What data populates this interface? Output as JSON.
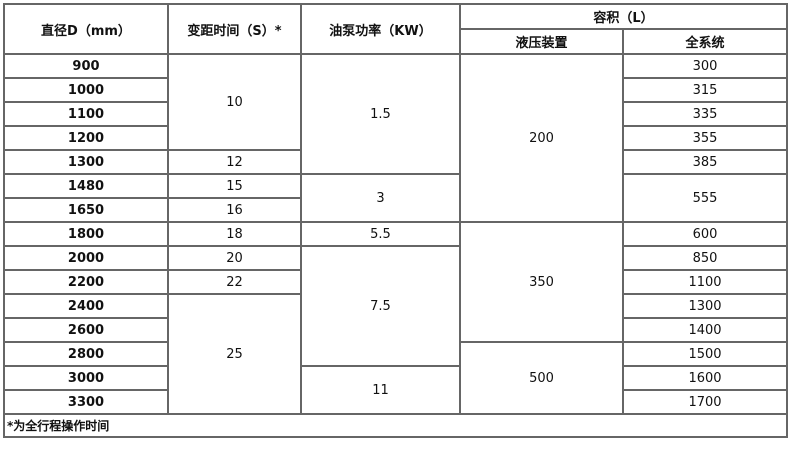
{
  "headers": {
    "diameter": "直径D（mm）",
    "time": "变距时间（S）*",
    "power": "油泵功率（KW）",
    "volume": "容积（L）",
    "hydraulic": "液压装置",
    "system": "全系统"
  },
  "diameters": [
    "900",
    "1000",
    "1100",
    "1200",
    "1300",
    "1480",
    "1650",
    "1800",
    "2000",
    "2200",
    "2400",
    "2600",
    "2800",
    "3000",
    "3300"
  ],
  "time_groups": [
    {
      "value": "10",
      "rows": 4
    },
    {
      "value": "12",
      "rows": 1
    },
    {
      "value": "15",
      "rows": 1
    },
    {
      "value": "16",
      "rows": 1
    },
    {
      "value": "18",
      "rows": 1
    },
    {
      "value": "20",
      "rows": 1
    },
    {
      "value": "22",
      "rows": 1
    },
    {
      "value": "25",
      "rows": 5
    }
  ],
  "power_groups": [
    {
      "value": "1.5",
      "rows": 5
    },
    {
      "value": "3",
      "rows": 2
    },
    {
      "value": "5.5",
      "rows": 1
    },
    {
      "value": "7.5",
      "rows": 5
    },
    {
      "value": "11",
      "rows": 2
    }
  ],
  "hydraulic_groups": [
    {
      "value": "200",
      "rows": 7
    },
    {
      "value": "350",
      "rows": 5
    },
    {
      "value": "500",
      "rows": 3
    }
  ],
  "system_groups": [
    {
      "value": "300",
      "rows": 1
    },
    {
      "value": "315",
      "rows": 1
    },
    {
      "value": "335",
      "rows": 1
    },
    {
      "value": "355",
      "rows": 1
    },
    {
      "value": "385",
      "rows": 1
    },
    {
      "value": "555",
      "rows": 2
    },
    {
      "value": "600",
      "rows": 1
    },
    {
      "value": "850",
      "rows": 1
    },
    {
      "value": "1100",
      "rows": 1
    },
    {
      "value": "1300",
      "rows": 1
    },
    {
      "value": "1400",
      "rows": 1
    },
    {
      "value": "1500",
      "rows": 1
    },
    {
      "value": "1600",
      "rows": 1
    },
    {
      "value": "1700",
      "rows": 1
    }
  ],
  "footnote": "*为全行程操作时间"
}
